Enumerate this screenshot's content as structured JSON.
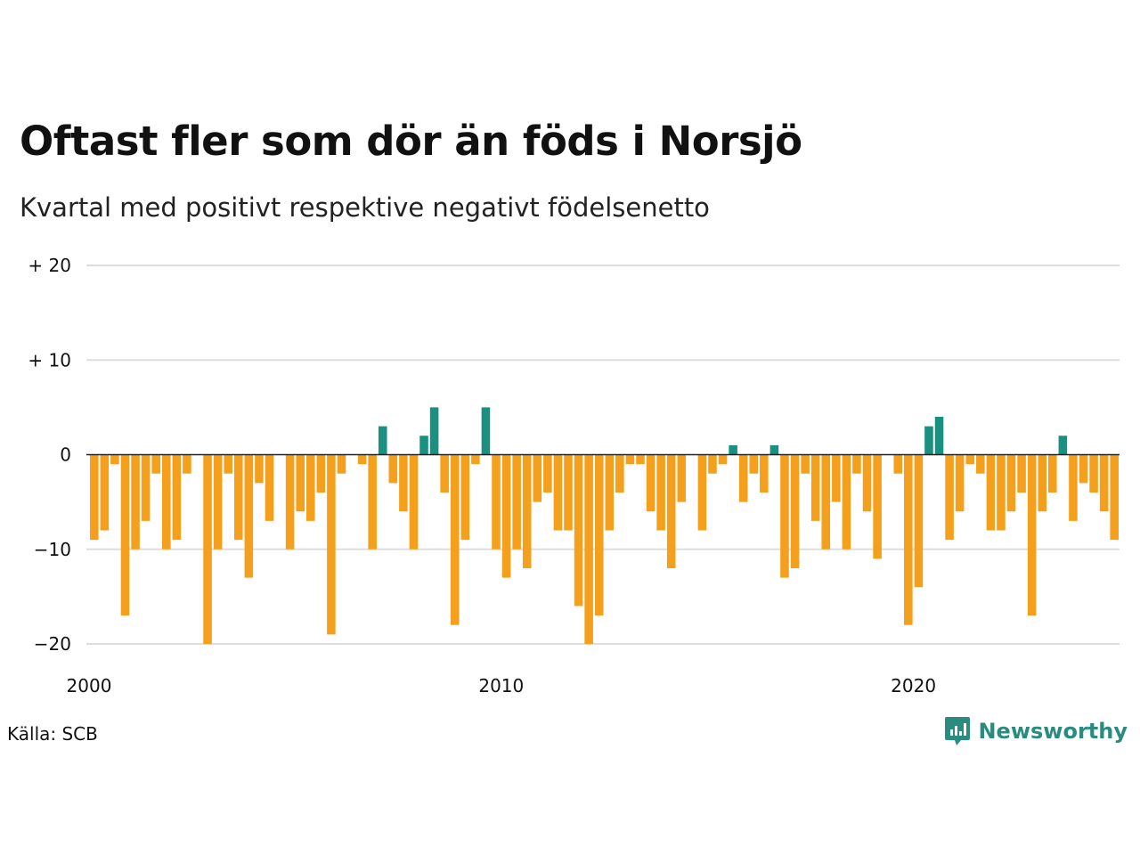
{
  "title": "Oftast fler som dör än föds i Norsjö",
  "subtitle": "Kvartal med positivt respektive negativt födelsenetto",
  "source": "Källa: SCB",
  "brand": "Newsworthy",
  "colors": {
    "positive": "#1a9081",
    "negative": "#f5a01c",
    "grid": "#dddddd",
    "zero": "#222222",
    "brand": "#2a8b7f"
  },
  "chart_data": {
    "type": "bar",
    "ylim": [
      -20,
      20
    ],
    "yticks": [
      20,
      10,
      0,
      -10,
      -20
    ],
    "ytick_labels": [
      "+ 20",
      "+ 10",
      "0",
      "−10",
      "−20"
    ],
    "xticks": [
      2000,
      2010,
      2020
    ],
    "x_start": "2000-Q1",
    "x_end": "2024-Q4",
    "grid": true,
    "legend": "none",
    "values": [
      -9,
      -8,
      -1,
      -17,
      -10,
      -7,
      -2,
      -10,
      -9,
      -2,
      0,
      -20,
      -10,
      -2,
      -9,
      -13,
      -3,
      -7,
      0,
      -10,
      -6,
      -7,
      -4,
      -19,
      -2,
      0,
      -1,
      -10,
      3,
      -3,
      -6,
      -10,
      2,
      5,
      -4,
      -18,
      -9,
      -1,
      5,
      -10,
      -13,
      -10,
      -12,
      -5,
      -4,
      -8,
      -8,
      -16,
      -20,
      -17,
      -8,
      -4,
      -1,
      -1,
      -6,
      -8,
      -12,
      -5,
      0,
      -8,
      -2,
      -1,
      1,
      -5,
      -2,
      -4,
      1,
      -13,
      -12,
      -2,
      -7,
      -10,
      -5,
      -10,
      -2,
      -6,
      -11,
      0,
      -2,
      -18,
      -14,
      3,
      4,
      -9,
      -6,
      -1,
      -2,
      -8,
      -8,
      -6,
      -4,
      -17,
      -6,
      -4,
      2,
      -7,
      -3,
      -4,
      -6,
      -9
    ]
  }
}
